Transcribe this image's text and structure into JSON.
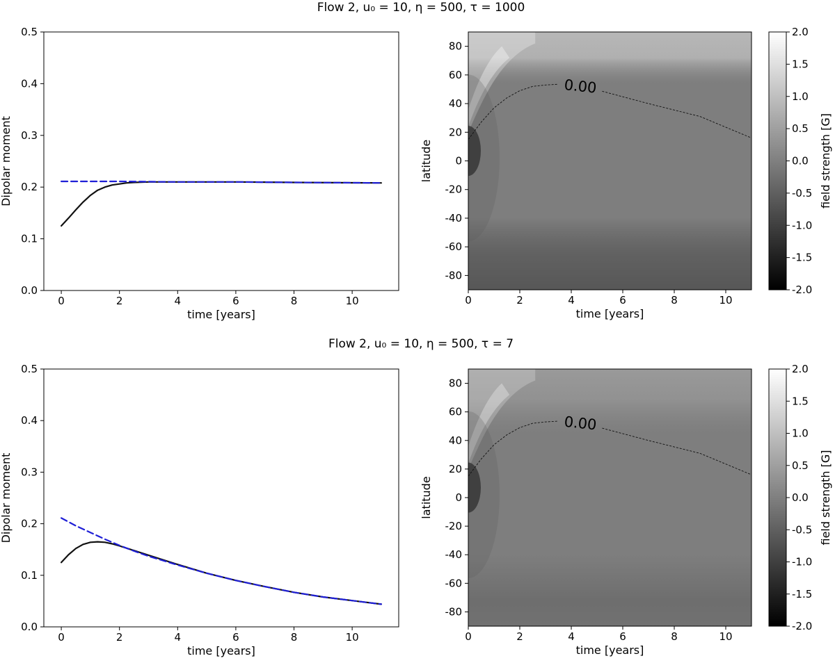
{
  "figure_rows": [
    {
      "title": "Flow 2, u₀ = 10, η = 500, τ = 1000"
    },
    {
      "title": "Flow 2, u₀ = 10, η = 500, τ = 7"
    }
  ],
  "chart_data": [
    {
      "type": "line",
      "panel": "top-left",
      "xlabel": "time [years]",
      "ylabel": "Dipolar moment",
      "xlim": [
        -0.6,
        11.6
      ],
      "ylim": [
        0.0,
        0.5
      ],
      "xticks": [
        0,
        2,
        4,
        6,
        8,
        10
      ],
      "yticks": [
        0.0,
        0.1,
        0.2,
        0.3,
        0.4,
        0.5
      ],
      "series": [
        {
          "style": "solid",
          "color": "#111111",
          "x": [
            0,
            0.25,
            0.5,
            0.75,
            1,
            1.25,
            1.5,
            1.75,
            2,
            2.25,
            2.5,
            3,
            4,
            6,
            8,
            11
          ],
          "y": [
            0.125,
            0.14,
            0.156,
            0.171,
            0.184,
            0.194,
            0.2,
            0.204,
            0.206,
            0.208,
            0.209,
            0.21,
            0.21,
            0.21,
            0.209,
            0.208
          ]
        },
        {
          "style": "dashed",
          "color": "#1f1fd6",
          "x": [
            0,
            2,
            4,
            6,
            8,
            11
          ],
          "y": [
            0.211,
            0.211,
            0.21,
            0.21,
            0.209,
            0.208
          ]
        }
      ]
    },
    {
      "type": "heatmap",
      "panel": "top-right",
      "xlabel": "time [years]",
      "ylabel": "latitude",
      "xlim": [
        0,
        11
      ],
      "ylim": [
        -90,
        90
      ],
      "xticks": [
        0,
        2,
        4,
        6,
        8,
        10
      ],
      "yticks": [
        -80,
        -60,
        -40,
        -20,
        0,
        20,
        40,
        60,
        80
      ],
      "colorbar": {
        "label": "field strength [G]",
        "range": [
          -2.0,
          2.0
        ],
        "ticks": [
          -2.0,
          -1.5,
          -1.0,
          -0.5,
          0.0,
          0.5,
          1.0,
          1.5,
          2.0
        ],
        "cmap": "gray"
      },
      "contour": {
        "label": "0.00",
        "level": 0.0,
        "t": [
          0,
          0.5,
          1,
          1.5,
          2,
          2.5,
          3,
          3.5,
          5,
          7,
          9,
          11
        ],
        "lat": [
          15,
          27,
          37,
          44,
          49,
          52,
          53,
          53.5,
          49,
          40,
          31,
          16
        ]
      },
      "fields": {
        "north_polar": 0.55,
        "south_polar": -0.35,
        "background": 0.0
      }
    },
    {
      "type": "line",
      "panel": "bottom-left",
      "xlabel": "time [years]",
      "ylabel": "Dipolar moment",
      "xlim": [
        -0.6,
        11.6
      ],
      "ylim": [
        0.0,
        0.5
      ],
      "xticks": [
        0,
        2,
        4,
        6,
        8,
        10
      ],
      "yticks": [
        0.0,
        0.1,
        0.2,
        0.3,
        0.4,
        0.5
      ],
      "series": [
        {
          "style": "solid",
          "color": "#111111",
          "x": [
            0,
            0.25,
            0.5,
            0.75,
            1,
            1.25,
            1.5,
            1.75,
            2,
            2.5,
            3,
            4,
            5,
            6,
            7,
            8,
            9,
            10,
            11
          ],
          "y": [
            0.125,
            0.14,
            0.152,
            0.16,
            0.164,
            0.165,
            0.164,
            0.161,
            0.157,
            0.148,
            0.139,
            0.121,
            0.104,
            0.09,
            0.078,
            0.067,
            0.058,
            0.051,
            0.044
          ]
        },
        {
          "style": "dashed",
          "color": "#1f1fd6",
          "x": [
            0,
            0.5,
            1,
            1.5,
            2,
            2.5,
            3,
            4,
            5,
            6,
            7,
            8,
            9,
            10,
            11
          ],
          "y": [
            0.211,
            0.196,
            0.183,
            0.17,
            0.158,
            0.147,
            0.137,
            0.12,
            0.104,
            0.09,
            0.078,
            0.067,
            0.058,
            0.051,
            0.044
          ]
        }
      ]
    },
    {
      "type": "heatmap",
      "panel": "bottom-right",
      "xlabel": "time [years]",
      "ylabel": "latitude",
      "xlim": [
        0,
        11
      ],
      "ylim": [
        -90,
        90
      ],
      "xticks": [
        0,
        2,
        4,
        6,
        8,
        10
      ],
      "yticks": [
        -80,
        -60,
        -40,
        -20,
        0,
        20,
        40,
        60,
        80
      ],
      "colorbar": {
        "label": "field strength [G]",
        "range": [
          -2.0,
          2.0
        ],
        "ticks": [
          -2.0,
          -1.5,
          -1.0,
          -0.5,
          0.0,
          0.5,
          1.0,
          1.5,
          2.0
        ],
        "cmap": "gray"
      },
      "contour": {
        "label": "0.00",
        "level": 0.0,
        "t": [
          0,
          0.5,
          1,
          1.5,
          2,
          2.5,
          3,
          3.5,
          5,
          7,
          9,
          11
        ],
        "lat": [
          15,
          27,
          37,
          44,
          49,
          52,
          53,
          53.5,
          49,
          40,
          31,
          16
        ]
      },
      "fields": {
        "north_polar": 0.35,
        "south_polar": -0.12,
        "background": 0.0
      }
    }
  ]
}
